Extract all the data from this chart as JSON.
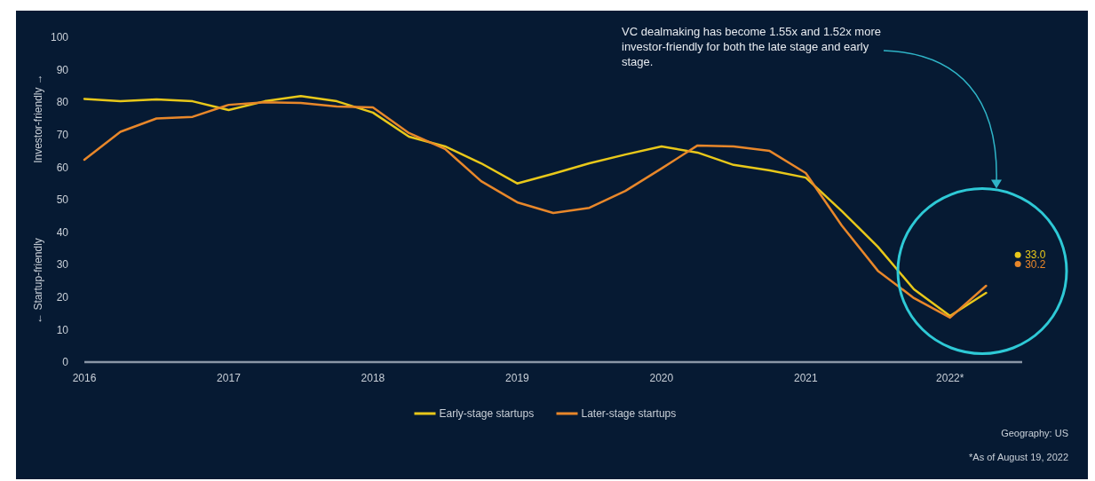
{
  "chart_data": {
    "type": "line",
    "ylabel": "← Startup-friendly   Investor-friendly →",
    "x": [
      2016,
      2016.25,
      2016.5,
      2016.75,
      2017,
      2017.25,
      2017.5,
      2017.75,
      2018,
      2018.25,
      2018.5,
      2018.75,
      2019,
      2019.25,
      2019.5,
      2019.75,
      2020,
      2020.25,
      2020.5,
      2020.75,
      2021,
      2021.25,
      2021.5,
      2021.75,
      2022,
      2022.25
    ],
    "series": [
      {
        "name": "Early-stage startups",
        "color": "#e8c81a",
        "values": [
          81,
          80.3,
          80.9,
          80.3,
          77.6,
          80.3,
          81.9,
          80.3,
          76.8,
          69.4,
          66.4,
          61.2,
          55,
          58,
          61.2,
          63.9,
          66.4,
          64.5,
          60.7,
          59,
          56.8,
          46.5,
          35.5,
          22.4,
          14.2,
          21.3
        ]
      },
      {
        "name": "Later-stage startups",
        "color": "#e8872a",
        "values": [
          62.3,
          70.9,
          75,
          75.5,
          79.2,
          80,
          79.8,
          78.7,
          78.4,
          70.5,
          65.6,
          55.7,
          49.2,
          45.9,
          47.5,
          52.7,
          59.6,
          66.7,
          66.4,
          65,
          58.2,
          42,
          28.1,
          19.7,
          13.7,
          23.5
        ]
      }
    ],
    "xlim": [
      2016,
      2022.5
    ],
    "xticks": [
      2016,
      2017,
      2018,
      2019,
      2020,
      2021,
      {
        "value": 2022,
        "label": "2022*"
      }
    ],
    "ylim": [
      0,
      100
    ],
    "yticks": [
      0,
      10,
      20,
      30,
      40,
      50,
      60,
      70,
      80,
      90,
      100
    ],
    "grid": false,
    "legend": "bottom",
    "annotations": [
      "VC dealmaking has become 1.55x and 1.52x more investor-friendly for both the late stage and early stage.",
      {
        "text": "33.0",
        "x": 2022.47,
        "y": 33.0
      },
      {
        "text": "30.2",
        "x": 2022.47,
        "y": 30.2
      },
      "Geography: US",
      "*As of August 19, 2022"
    ]
  }
}
